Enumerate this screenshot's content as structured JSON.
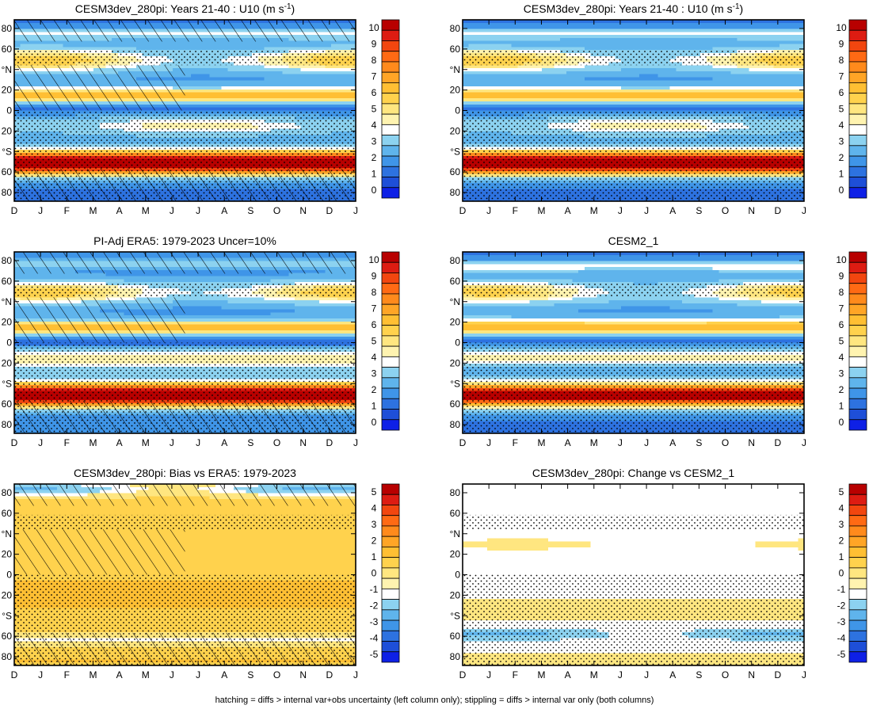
{
  "colors": {
    "pos_levels": [
      "#ffffff",
      "#fff3b0",
      "#ffe680",
      "#ffd24d",
      "#ffbf33",
      "#ffa526",
      "#ff8a1c",
      "#ff6a14",
      "#f2460f",
      "#dd1c12",
      "#b80000"
    ],
    "neg_levels": [
      "#8cd2f0",
      "#5fb4ec",
      "#3f95e8",
      "#2d72e0",
      "#1e4fd8",
      "#0e20e6"
    ]
  },
  "icons": {
    "hatching": "diagonal-hatch-pattern",
    "stippling": "dot-stipple-pattern"
  },
  "footnote": "hatching = diffs > internal var+obs uncertainty (left column only); stippling = diffs > internal var only (both columns)",
  "chart_data": [
    {
      "type": "heatmap",
      "title": "CESM3dev_280pi: Years 21-40 : U10 (m s",
      "title_superscript": "-1",
      "title_suffix": ")",
      "x_ticks": [
        "D",
        "J",
        "F",
        "M",
        "A",
        "M",
        "J",
        "J",
        "A",
        "S",
        "O",
        "N",
        "D",
        "J"
      ],
      "y_ticks": [
        "80",
        "60",
        "°N",
        "20",
        "0",
        "20",
        "°S",
        "60",
        "80"
      ],
      "colorbar": {
        "ticks": [
          "10",
          "9",
          "8",
          "7",
          "6",
          "5",
          "4",
          "3",
          "2",
          "1",
          "0"
        ]
      },
      "field": "u10_model",
      "overlay": {
        "hatching": true,
        "stippling": true
      }
    },
    {
      "type": "heatmap",
      "title": "CESM3dev_280pi: Years 21-40 : U10 (m s",
      "title_superscript": "-1",
      "title_suffix": ")",
      "x_ticks": [
        "D",
        "J",
        "F",
        "M",
        "A",
        "M",
        "J",
        "J",
        "A",
        "S",
        "O",
        "N",
        "D",
        "J"
      ],
      "y_ticks": [
        "80",
        "60",
        "°N",
        "20",
        "0",
        "20",
        "°S",
        "60",
        "80"
      ],
      "colorbar": {
        "ticks": [
          "10",
          "9",
          "8",
          "7",
          "6",
          "5",
          "4",
          "3",
          "2",
          "1",
          "0"
        ]
      },
      "field": "u10_model",
      "overlay": {
        "hatching": false,
        "stippling": true
      }
    },
    {
      "type": "heatmap",
      "title": "PI-Adj ERA5: 1979-2023 Uncer=10%",
      "x_ticks": [
        "D",
        "J",
        "F",
        "M",
        "A",
        "M",
        "J",
        "J",
        "A",
        "S",
        "O",
        "N",
        "D",
        "J"
      ],
      "y_ticks": [
        "80",
        "60",
        "°N",
        "20",
        "0",
        "20",
        "°S",
        "60",
        "80"
      ],
      "colorbar": {
        "ticks": [
          "10",
          "9",
          "8",
          "7",
          "6",
          "5",
          "4",
          "3",
          "2",
          "1",
          "0"
        ]
      },
      "field": "u10_obs",
      "overlay": {
        "hatching": true,
        "stippling": true
      }
    },
    {
      "type": "heatmap",
      "title": "CESM2_1",
      "x_ticks": [
        "D",
        "J",
        "F",
        "M",
        "A",
        "M",
        "J",
        "J",
        "A",
        "S",
        "O",
        "N",
        "D",
        "J"
      ],
      "y_ticks": [
        "80",
        "60",
        "°N",
        "20",
        "0",
        "20",
        "°S",
        "60",
        "80"
      ],
      "colorbar": {
        "ticks": [
          "10",
          "9",
          "8",
          "7",
          "6",
          "5",
          "4",
          "3",
          "2",
          "1",
          "0"
        ]
      },
      "field": "u10_cesm2",
      "overlay": {
        "hatching": false,
        "stippling": true
      }
    },
    {
      "type": "heatmap",
      "title": "CESM3dev_280pi: Bias vs ERA5: 1979-2023",
      "x_ticks": [
        "D",
        "J",
        "F",
        "M",
        "A",
        "M",
        "J",
        "J",
        "A",
        "S",
        "O",
        "N",
        "D",
        "J"
      ],
      "y_ticks": [
        "80",
        "60",
        "°N",
        "20",
        "0",
        "20",
        "°S",
        "60",
        "80"
      ],
      "colorbar": {
        "ticks": [
          "5",
          "4",
          "3",
          "2",
          "1",
          "0",
          "-1",
          "-2",
          "-3",
          "-4",
          "-5"
        ]
      },
      "field": "bias",
      "overlay": {
        "hatching": true,
        "stippling": true
      }
    },
    {
      "type": "heatmap",
      "title": "CESM3dev_280pi: Change vs CESM2_1",
      "x_ticks": [
        "D",
        "J",
        "F",
        "M",
        "A",
        "M",
        "J",
        "J",
        "A",
        "S",
        "O",
        "N",
        "D",
        "J"
      ],
      "y_ticks": [
        "80",
        "60",
        "°N",
        "20",
        "0",
        "20",
        "°S",
        "60",
        "80"
      ],
      "colorbar": {
        "ticks": [
          "5",
          "4",
          "3",
          "2",
          "1",
          "0",
          "-1",
          "-2",
          "-3",
          "-4",
          "-5"
        ]
      },
      "field": "change",
      "overlay": {
        "hatching": false,
        "stippling": true
      }
    }
  ]
}
